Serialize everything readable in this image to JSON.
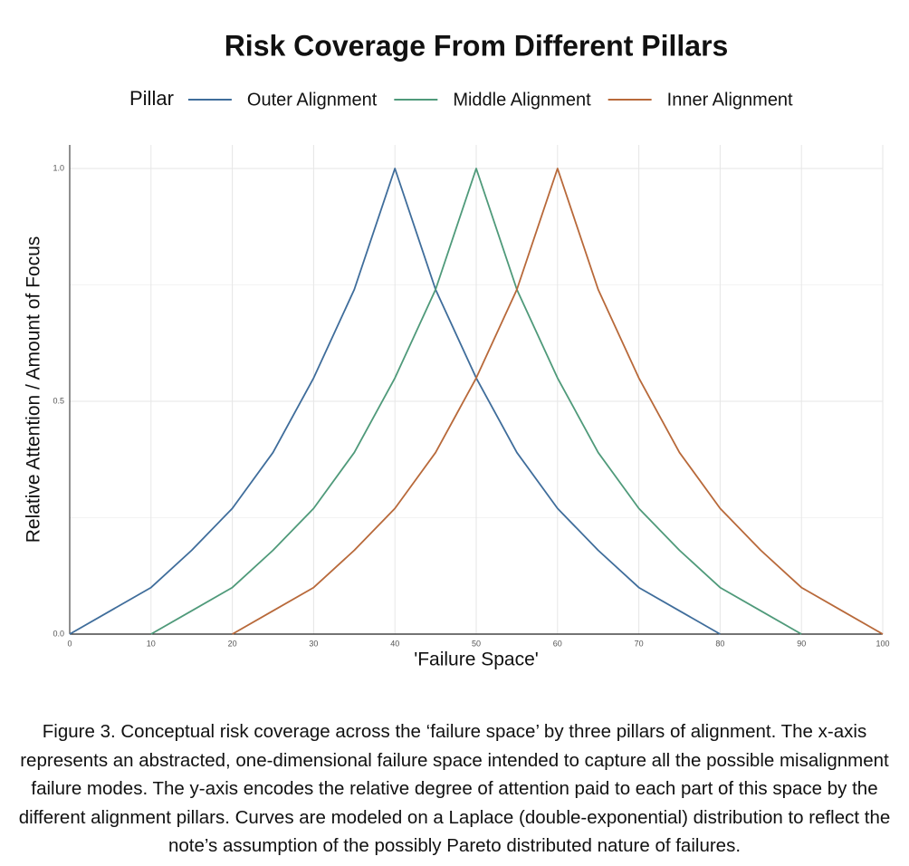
{
  "chart_data": {
    "type": "line",
    "title": "Risk Coverage From Different Pillars",
    "legend_title": "Pillar",
    "x_label": "'Failure Space'",
    "y_label": "Relative Attention / Amount of Focus",
    "x": [
      0,
      5,
      10,
      15,
      20,
      25,
      30,
      35,
      40,
      45,
      50,
      55,
      60,
      65,
      70,
      75,
      80,
      85,
      90,
      95,
      100
    ],
    "series": [
      {
        "name": "Outer Alignment",
        "color": "#3f6d9b",
        "values": [
          0,
          0.05,
          0.1,
          0.18,
          0.27,
          0.39,
          0.55,
          0.74,
          1,
          0.74,
          0.55,
          0.39,
          0.27,
          0.18,
          0.1,
          0.05,
          0,
          null,
          null,
          null,
          null
        ]
      },
      {
        "name": "Middle Alignment",
        "color": "#4f9a7a",
        "values": [
          null,
          null,
          0,
          0.05,
          0.1,
          0.18,
          0.27,
          0.39,
          0.55,
          0.74,
          1,
          0.74,
          0.55,
          0.39,
          0.27,
          0.18,
          0.1,
          0.05,
          0,
          null,
          null
        ]
      },
      {
        "name": "Inner Alignment",
        "color": "#b8693a",
        "values": [
          null,
          null,
          null,
          null,
          0,
          0.05,
          0.1,
          0.18,
          0.27,
          0.39,
          0.55,
          0.74,
          1,
          0.74,
          0.55,
          0.39,
          0.27,
          0.18,
          0.1,
          0.05,
          0
        ]
      }
    ],
    "xlim": [
      0,
      100
    ],
    "xticks": [
      0,
      10,
      20,
      30,
      40,
      50,
      60,
      70,
      80,
      90,
      100
    ],
    "ylim": [
      0,
      1
    ],
    "yticks": [
      {
        "value": 0,
        "label": "0.0"
      },
      {
        "value": 0.5,
        "label": "0.5"
      },
      {
        "value": 1,
        "label": "1.0"
      }
    ],
    "grid": true,
    "legend_position": "top",
    "caption": "Figure 3. Conceptual risk coverage across the ‘failure space’ by three pillars of alignment. The x-axis represents an abstracted, one-dimensional failure space intended to capture all the possible misalignment failure modes. The y-axis encodes the relative degree of attention paid to each part of this space by the different alignment pillars. Curves are modeled on a Laplace (double-exponential) distribution to reflect the note’s assumption of the possibly Pareto distributed nature of failures."
  }
}
